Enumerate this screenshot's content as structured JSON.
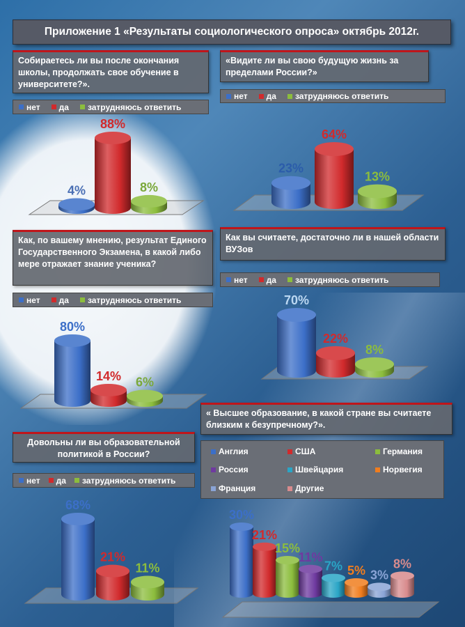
{
  "title": "Приложение 1 «Результаты социологического опроса» октябрь 2012г.",
  "colors": {
    "blue": "#3c6fc8",
    "red": "#d12a2c",
    "green": "#8cbd3d",
    "purple": "#6f3aa0",
    "teal": "#2aa5c6",
    "orange": "#f07d1e",
    "lightblue": "#8aa4d6",
    "pink": "#d88b8d"
  },
  "legend3": [
    "нет",
    "да",
    "затрудняюсь ответить"
  ],
  "charts": [
    {
      "question": "Собираетесь ли вы после окончания школы, продолжать свое обучение в университете?».",
      "chart_data": {
        "type": "bar",
        "categories": [
          "нет",
          "да",
          "затрудняюсь ответить"
        ],
        "values": [
          4,
          88,
          8
        ],
        "labels": [
          "4%",
          "88%",
          "8%"
        ]
      }
    },
    {
      "question": "«Видите ли вы свою будущую жизнь за пределами России?»",
      "chart_data": {
        "type": "bar",
        "categories": [
          "нет",
          "да",
          "затрудняюсь ответить"
        ],
        "values": [
          23,
          64,
          13
        ],
        "labels": [
          "23%",
          "64%",
          "13%"
        ]
      }
    },
    {
      "question": "Как, по вашему мнению, результат Единого Государственного Экзамена, в какой либо мере отражает знание ученика?",
      "chart_data": {
        "type": "bar",
        "categories": [
          "нет",
          "да",
          "затрудняюсь ответить"
        ],
        "values": [
          80,
          14,
          6
        ],
        "labels": [
          "80%",
          "14%",
          "6%"
        ]
      }
    },
    {
      "question": "Как вы считаете, достаточно ли в нашей области ВУЗов",
      "chart_data": {
        "type": "bar",
        "categories": [
          "нет",
          "да",
          "затрудняюсь ответить"
        ],
        "values": [
          70,
          22,
          8
        ],
        "labels": [
          "70%",
          "22%",
          "8%"
        ]
      }
    },
    {
      "question": "Довольны ли вы образовательной политикой в России?",
      "chart_data": {
        "type": "bar",
        "categories": [
          "нет",
          "да",
          "затрудняюсь ответить"
        ],
        "values": [
          68,
          21,
          11
        ],
        "labels": [
          "68%",
          "21%",
          "11%"
        ]
      }
    },
    {
      "question": "« Высшее образование, в какой стране вы считаете близким к безупречному?».",
      "chart_data": {
        "type": "bar",
        "categories": [
          "Англия",
          "США",
          "Германия",
          "Россия",
          "Швейцария",
          "Норвегия",
          "Франция",
          "Другие"
        ],
        "values": [
          30,
          21,
          15,
          11,
          7,
          5,
          3,
          8
        ],
        "labels": [
          "30%",
          "21%",
          "15%",
          "11%",
          "7%",
          "5%",
          "3%",
          "8%"
        ]
      }
    }
  ]
}
